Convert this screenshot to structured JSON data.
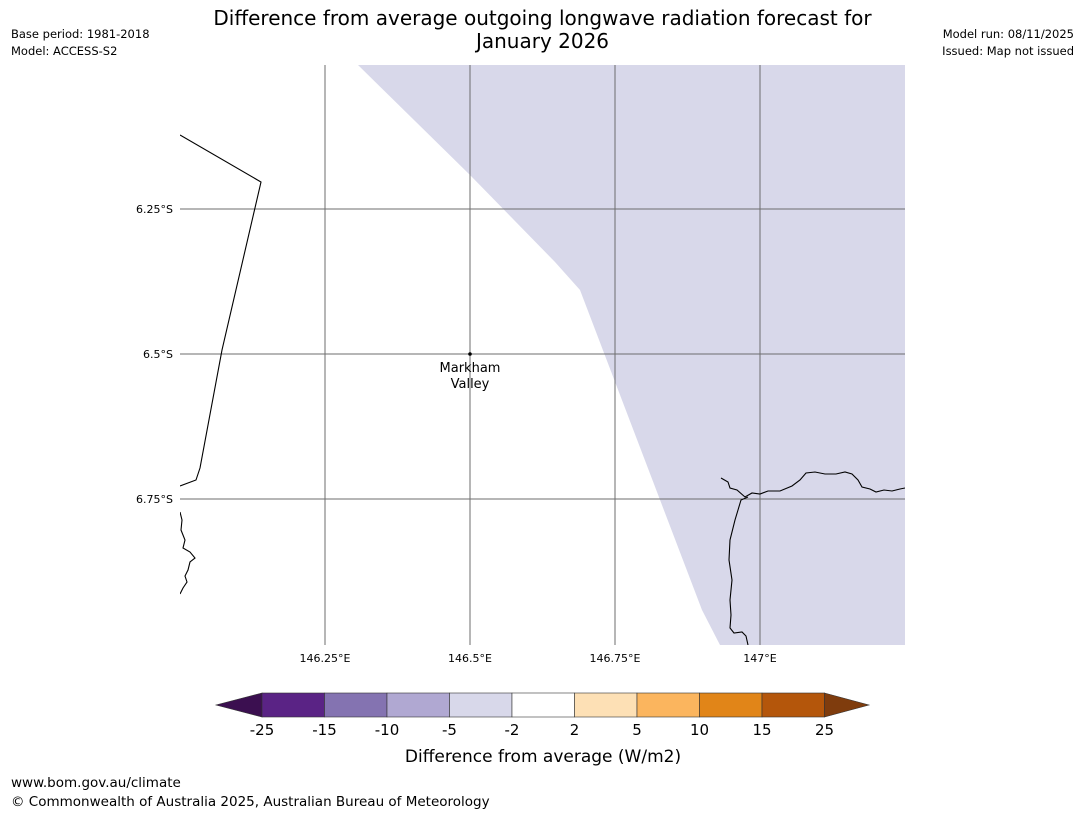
{
  "header": {
    "title_line1": "Difference from average outgoing longwave radiation forecast for",
    "title_line2": "January 2026",
    "base_period": "Base period: 1981-2018",
    "model": "Model: ACCESS-S2",
    "model_run": "Model run: 08/11/2025",
    "issued": "Issued: Map not issued"
  },
  "map": {
    "lat_labels": [
      "6.25°S",
      "6.5°S",
      "6.75°S"
    ],
    "lon_labels": [
      "146.25°E",
      "146.5°E",
      "146.75°E",
      "147°E"
    ],
    "place": {
      "name_line1": "Markham",
      "name_line2": "Valley"
    },
    "shaded_category": "-5 to -2",
    "shade_color": "#d8d8ea"
  },
  "legend": {
    "label": "Difference from average (W/m2)",
    "ticks": [
      "-25",
      "-15",
      "-10",
      "-5",
      "-2",
      "2",
      "5",
      "10",
      "15",
      "25"
    ],
    "colors": [
      "#3b0f50",
      "#5a2385",
      "#8473b1",
      "#b0a8d2",
      "#d8d8ea",
      "#ffffff",
      "#fde0b5",
      "#fbb55e",
      "#e18518",
      "#b4560b",
      "#7f3c0d"
    ]
  },
  "footer": {
    "url": "www.bom.gov.au/climate",
    "copyright": "© Commonwealth of Australia 2025, Australian Bureau of Meteorology"
  }
}
